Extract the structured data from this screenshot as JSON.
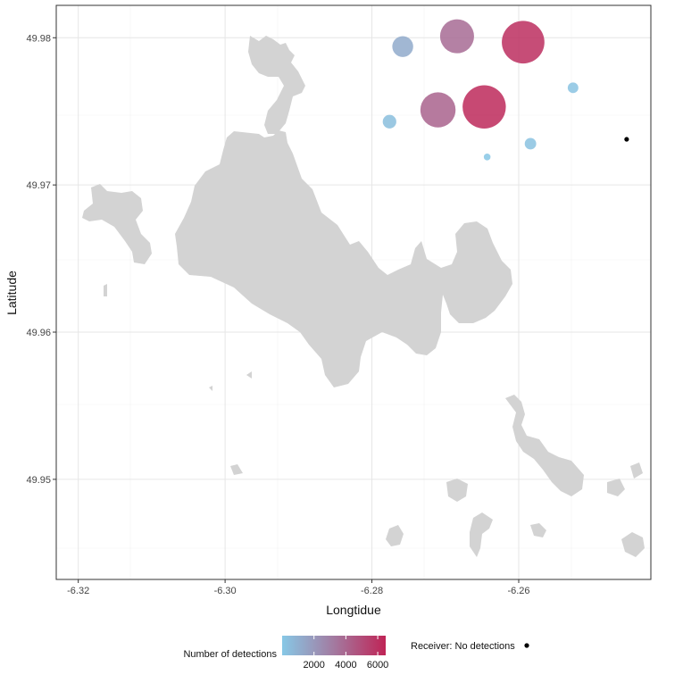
{
  "map": {
    "xlabel": "Longtidue",
    "ylabel": "Latitude",
    "xlim": [
      -6.323,
      -6.242
    ],
    "ylim": [
      49.9432,
      49.9822
    ],
    "x_ticks": [
      -6.32,
      -6.3,
      -6.28,
      -6.26
    ],
    "x_tick_labels": [
      "-6.32",
      "-6.30",
      "-6.28",
      "-6.26"
    ],
    "y_ticks": [
      49.95,
      49.96,
      49.97,
      49.98
    ],
    "y_tick_labels": [
      "49.95",
      "49.96",
      "49.97",
      "49.98"
    ],
    "land_color": "#d3d3d3",
    "grid": true
  },
  "chart_data": {
    "type": "scatter",
    "xlabel": "Longtidue",
    "ylabel": "Latitude",
    "xlim": [
      -6.323,
      -6.242
    ],
    "ylim": [
      49.9432,
      49.9822
    ],
    "color_scale": {
      "low": "#87c8e6",
      "high": "#bf2456",
      "min": 0,
      "max": 6500
    },
    "points": [
      {
        "x": -6.2758,
        "y": 49.9794,
        "detections": 1200
      },
      {
        "x": -6.2684,
        "y": 49.9801,
        "detections": 3700
      },
      {
        "x": -6.2594,
        "y": 49.9797,
        "detections": 6100
      },
      {
        "x": -6.2776,
        "y": 49.9743,
        "detections": 400
      },
      {
        "x": -6.271,
        "y": 49.9751,
        "detections": 4000
      },
      {
        "x": -6.2647,
        "y": 49.9753,
        "detections": 6300
      },
      {
        "x": -6.2526,
        "y": 49.9766,
        "detections": 200
      },
      {
        "x": -6.2584,
        "y": 49.9728,
        "detections": 250
      },
      {
        "x": -6.2643,
        "y": 49.9719,
        "detections": 40
      }
    ],
    "no_detection_receivers": [
      {
        "x": -6.2453,
        "y": 49.9731
      }
    ]
  },
  "legend": {
    "gradient_title": "Number of detections",
    "gradient_ticks": [
      2000,
      4000,
      6000
    ],
    "gradient_tick_labels": [
      "2000",
      "4000",
      "6000"
    ],
    "gradient_min": 0,
    "gradient_max": 6500,
    "receiver_label": "Receiver: No detections"
  }
}
